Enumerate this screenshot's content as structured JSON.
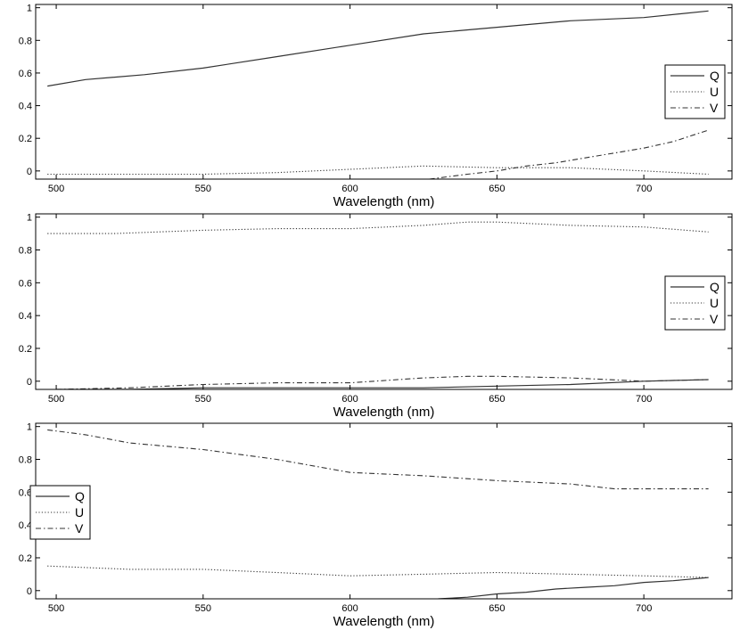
{
  "chart_data": [
    {
      "type": "line",
      "xlabel": "Wavelength (nm)",
      "xlim": [
        493,
        730
      ],
      "ylim": [
        -0.05,
        1.02
      ],
      "xticks": [
        "500",
        "550",
        "600",
        "650",
        "700"
      ],
      "yticks": [
        "0",
        "0.2",
        "0.4",
        "0.6",
        "0.8",
        "1"
      ],
      "legend": {
        "position": "right",
        "entries": [
          "Q",
          "U",
          "V"
        ]
      },
      "series": [
        {
          "name": "Q",
          "style": "solid",
          "x": [
            497,
            510,
            530,
            550,
            575,
            600,
            625,
            650,
            675,
            700,
            722
          ],
          "y": [
            0.52,
            0.56,
            0.59,
            0.63,
            0.7,
            0.77,
            0.84,
            0.88,
            0.92,
            0.94,
            0.98
          ]
        },
        {
          "name": "U",
          "style": "dotted",
          "x": [
            497,
            525,
            550,
            575,
            600,
            625,
            650,
            675,
            700,
            722
          ],
          "y": [
            -0.02,
            -0.02,
            -0.02,
            -0.01,
            0.01,
            0.03,
            0.02,
            0.02,
            0.0,
            -0.02
          ]
        },
        {
          "name": "V",
          "style": "dashdot",
          "x": [
            627,
            640,
            650,
            660,
            670,
            680,
            690,
            700,
            710,
            722
          ],
          "y": [
            -0.05,
            -0.02,
            0.0,
            0.03,
            0.05,
            0.08,
            0.11,
            0.14,
            0.18,
            0.25
          ]
        }
      ]
    },
    {
      "type": "line",
      "xlabel": "Wavelength (nm)",
      "xlim": [
        493,
        730
      ],
      "ylim": [
        -0.05,
        1.02
      ],
      "xticks": [
        "500",
        "550",
        "600",
        "650",
        "700"
      ],
      "yticks": [
        "0",
        "0.2",
        "0.4",
        "0.6",
        "0.8",
        "1"
      ],
      "legend": {
        "position": "right",
        "entries": [
          "Q",
          "U",
          "V"
        ]
      },
      "series": [
        {
          "name": "Q",
          "style": "solid",
          "x": [
            500,
            525,
            550,
            575,
            600,
            625,
            650,
            675,
            700,
            722
          ],
          "y": [
            -0.05,
            -0.05,
            -0.04,
            -0.04,
            -0.04,
            -0.04,
            -0.03,
            -0.02,
            0.0,
            0.01
          ]
        },
        {
          "name": "U",
          "style": "dotted",
          "x": [
            497,
            520,
            550,
            575,
            600,
            625,
            640,
            650,
            675,
            700,
            722
          ],
          "y": [
            0.9,
            0.9,
            0.92,
            0.93,
            0.93,
            0.95,
            0.97,
            0.97,
            0.95,
            0.94,
            0.91
          ]
        },
        {
          "name": "V",
          "style": "dashdot",
          "x": [
            500,
            525,
            550,
            575,
            600,
            625,
            640,
            650,
            675,
            700,
            722
          ],
          "y": [
            -0.05,
            -0.04,
            -0.02,
            -0.01,
            -0.01,
            0.02,
            0.03,
            0.03,
            0.02,
            0.0,
            0.01
          ]
        }
      ]
    },
    {
      "type": "line",
      "xlabel": "Wavelength (nm)",
      "xlim": [
        493,
        730
      ],
      "ylim": [
        -0.05,
        1.02
      ],
      "xticks": [
        "500",
        "550",
        "600",
        "650",
        "700"
      ],
      "yticks": [
        "0",
        "0.2",
        "0.4",
        "0.6",
        "0.8",
        "1"
      ],
      "legend": {
        "position": "left",
        "entries": [
          "Q",
          "U",
          "V"
        ]
      },
      "series": [
        {
          "name": "Q",
          "style": "solid",
          "x": [
            630,
            640,
            650,
            660,
            670,
            680,
            690,
            700,
            710,
            722
          ],
          "y": [
            -0.05,
            -0.04,
            -0.02,
            -0.01,
            0.01,
            0.02,
            0.03,
            0.05,
            0.06,
            0.08
          ]
        },
        {
          "name": "U",
          "style": "dotted",
          "x": [
            497,
            525,
            550,
            575,
            600,
            625,
            650,
            675,
            700,
            722
          ],
          "y": [
            0.15,
            0.13,
            0.13,
            0.11,
            0.09,
            0.1,
            0.11,
            0.1,
            0.09,
            0.08
          ]
        },
        {
          "name": "V",
          "style": "dashdot",
          "x": [
            497,
            510,
            525,
            550,
            575,
            600,
            625,
            650,
            675,
            690,
            700,
            722
          ],
          "y": [
            0.98,
            0.95,
            0.9,
            0.86,
            0.8,
            0.72,
            0.7,
            0.67,
            0.65,
            0.62,
            0.62,
            0.62
          ]
        }
      ]
    }
  ]
}
